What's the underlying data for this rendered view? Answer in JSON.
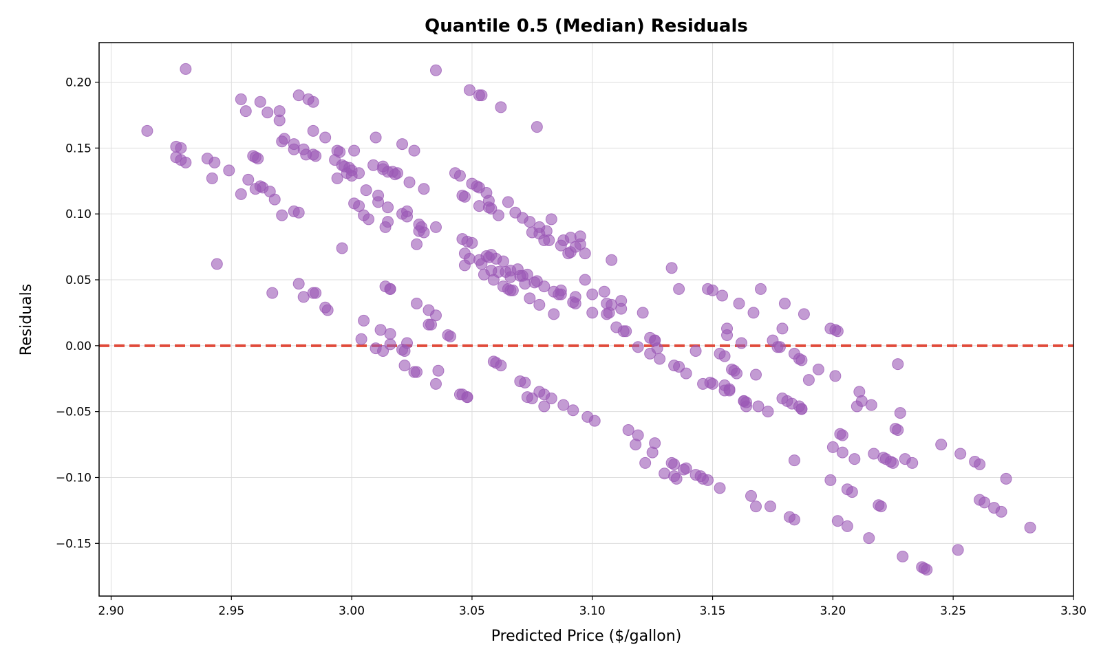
{
  "chart_data": {
    "type": "scatter",
    "title": "Quantile 0.5 (Median) Residuals",
    "xlabel": "Predicted Price ($/gallon)",
    "ylabel": "Residuals",
    "xlim": [
      2.895,
      3.3
    ],
    "ylim": [
      -0.19,
      0.23
    ],
    "x_ticks": [
      "2.90",
      "2.95",
      "3.00",
      "3.05",
      "3.10",
      "3.15",
      "3.20",
      "3.25",
      "3.30"
    ],
    "y_ticks": [
      "−0.15",
      "−0.10",
      "−0.05",
      "0.00",
      "0.05",
      "0.10",
      "0.15",
      "0.20"
    ],
    "grid": true,
    "reference_line": {
      "y": 0.0,
      "style": "dashed",
      "color": "#e04a3a"
    },
    "marker_color": "#9b59b6",
    "points": [
      [
        2.915,
        0.163
      ],
      [
        2.927,
        0.151
      ],
      [
        2.929,
        0.15
      ],
      [
        2.927,
        0.143
      ],
      [
        2.929,
        0.141
      ],
      [
        2.931,
        0.139
      ],
      [
        2.931,
        0.21
      ],
      [
        2.94,
        0.142
      ],
      [
        2.943,
        0.139
      ],
      [
        2.942,
        0.127
      ],
      [
        2.949,
        0.133
      ],
      [
        2.944,
        0.062
      ],
      [
        2.954,
        0.187
      ],
      [
        2.956,
        0.178
      ],
      [
        2.954,
        0.115
      ],
      [
        2.957,
        0.126
      ],
      [
        2.959,
        0.144
      ],
      [
        2.96,
        0.143
      ],
      [
        2.961,
        0.142
      ],
      [
        2.96,
        0.119
      ],
      [
        2.962,
        0.121
      ],
      [
        2.963,
        0.12
      ],
      [
        2.962,
        0.185
      ],
      [
        2.965,
        0.177
      ],
      [
        2.966,
        0.117
      ],
      [
        2.968,
        0.111
      ],
      [
        2.97,
        0.178
      ],
      [
        2.97,
        0.171
      ],
      [
        2.971,
        0.155
      ],
      [
        2.972,
        0.157
      ],
      [
        2.971,
        0.099
      ],
      [
        2.967,
        0.04
      ],
      [
        2.976,
        0.153
      ],
      [
        2.976,
        0.149
      ],
      [
        2.978,
        0.19
      ],
      [
        2.976,
        0.102
      ],
      [
        2.978,
        0.101
      ],
      [
        2.978,
        0.047
      ],
      [
        2.98,
        0.037
      ],
      [
        2.98,
        0.149
      ],
      [
        2.981,
        0.145
      ],
      [
        2.982,
        0.187
      ],
      [
        2.984,
        0.185
      ],
      [
        2.984,
        0.145
      ],
      [
        2.985,
        0.144
      ],
      [
        2.984,
        0.163
      ],
      [
        2.984,
        0.04
      ],
      [
        2.985,
        0.04
      ],
      [
        2.989,
        0.158
      ],
      [
        2.989,
        0.029
      ],
      [
        2.99,
        0.027
      ],
      [
        2.993,
        0.141
      ],
      [
        2.994,
        0.148
      ],
      [
        2.995,
        0.147
      ],
      [
        2.994,
        0.127
      ],
      [
        2.996,
        0.074
      ],
      [
        2.996,
        0.137
      ],
      [
        2.997,
        0.136
      ],
      [
        2.998,
        0.131
      ],
      [
        2.999,
        0.135
      ],
      [
        3.0,
        0.133
      ],
      [
        3.0,
        0.129
      ],
      [
        3.001,
        0.148
      ],
      [
        3.001,
        0.108
      ],
      [
        3.003,
        0.106
      ],
      [
        3.003,
        0.131
      ],
      [
        3.004,
        0.005
      ],
      [
        3.005,
        0.019
      ],
      [
        3.005,
        0.099
      ],
      [
        3.006,
        0.118
      ],
      [
        3.007,
        0.096
      ],
      [
        3.009,
        0.137
      ],
      [
        3.01,
        0.158
      ],
      [
        3.01,
        -0.002
      ],
      [
        3.011,
        0.114
      ],
      [
        3.011,
        0.109
      ],
      [
        3.012,
        0.012
      ],
      [
        3.013,
        -0.004
      ],
      [
        3.013,
        0.136
      ],
      [
        3.013,
        0.134
      ],
      [
        3.014,
        0.045
      ],
      [
        3.014,
        0.09
      ],
      [
        3.015,
        0.132
      ],
      [
        3.015,
        0.094
      ],
      [
        3.015,
        0.105
      ],
      [
        3.016,
        0.043
      ],
      [
        3.016,
        0.043
      ],
      [
        3.016,
        0.001
      ],
      [
        3.016,
        0.009
      ],
      [
        3.017,
        0.132
      ],
      [
        3.018,
        0.13
      ],
      [
        3.019,
        0.131
      ],
      [
        3.021,
        0.153
      ],
      [
        3.021,
        0.1
      ],
      [
        3.021,
        -0.003
      ],
      [
        3.022,
        -0.004
      ],
      [
        3.022,
        -0.015
      ],
      [
        3.023,
        0.098
      ],
      [
        3.023,
        0.102
      ],
      [
        3.023,
        0.002
      ],
      [
        3.024,
        0.124
      ],
      [
        3.026,
        0.148
      ],
      [
        3.026,
        -0.02
      ],
      [
        3.027,
        -0.02
      ],
      [
        3.027,
        0.077
      ],
      [
        3.027,
        0.032
      ],
      [
        3.028,
        0.092
      ],
      [
        3.028,
        0.087
      ],
      [
        3.029,
        0.09
      ],
      [
        3.03,
        0.119
      ],
      [
        3.03,
        0.086
      ],
      [
        3.032,
        0.016
      ],
      [
        3.032,
        0.027
      ],
      [
        3.033,
        0.016
      ],
      [
        3.035,
        0.09
      ],
      [
        3.035,
        0.023
      ],
      [
        3.035,
        -0.029
      ],
      [
        3.036,
        -0.019
      ],
      [
        3.035,
        0.209
      ],
      [
        3.04,
        0.008
      ],
      [
        3.041,
        0.007
      ],
      [
        3.043,
        0.131
      ],
      [
        3.045,
        0.129
      ],
      [
        3.045,
        -0.037
      ],
      [
        3.046,
        -0.037
      ],
      [
        3.046,
        0.114
      ],
      [
        3.046,
        0.081
      ],
      [
        3.047,
        0.061
      ],
      [
        3.047,
        0.113
      ],
      [
        3.047,
        0.07
      ],
      [
        3.048,
        0.079
      ],
      [
        3.048,
        -0.039
      ],
      [
        3.048,
        -0.039
      ],
      [
        3.049,
        0.066
      ],
      [
        3.049,
        0.194
      ],
      [
        3.05,
        0.123
      ],
      [
        3.05,
        0.078
      ],
      [
        3.052,
        0.121
      ],
      [
        3.053,
        0.12
      ],
      [
        3.053,
        0.065
      ],
      [
        3.053,
        0.19
      ],
      [
        3.054,
        0.19
      ],
      [
        3.053,
        0.106
      ],
      [
        3.054,
        0.062
      ],
      [
        3.055,
        0.054
      ],
      [
        3.056,
        0.068
      ],
      [
        3.056,
        0.116
      ],
      [
        3.057,
        0.067
      ],
      [
        3.057,
        0.11
      ],
      [
        3.057,
        0.105
      ],
      [
        3.058,
        0.104
      ],
      [
        3.058,
        0.069
      ],
      [
        3.058,
        0.057
      ],
      [
        3.059,
        0.05
      ],
      [
        3.059,
        -0.012
      ],
      [
        3.06,
        -0.013
      ],
      [
        3.06,
        0.066
      ],
      [
        3.061,
        0.099
      ],
      [
        3.061,
        0.056
      ],
      [
        3.062,
        0.181
      ],
      [
        3.062,
        -0.015
      ],
      [
        3.063,
        0.064
      ],
      [
        3.063,
        0.045
      ],
      [
        3.064,
        0.056
      ],
      [
        3.065,
        0.109
      ],
      [
        3.065,
        0.043
      ],
      [
        3.066,
        0.052
      ],
      [
        3.066,
        0.057
      ],
      [
        3.066,
        0.042
      ],
      [
        3.067,
        0.042
      ],
      [
        3.068,
        0.101
      ],
      [
        3.069,
        0.058
      ],
      [
        3.07,
        0.053
      ],
      [
        3.07,
        -0.027
      ],
      [
        3.071,
        0.097
      ],
      [
        3.071,
        0.053
      ],
      [
        3.072,
        -0.028
      ],
      [
        3.072,
        0.047
      ],
      [
        3.073,
        0.054
      ],
      [
        3.073,
        -0.039
      ],
      [
        3.074,
        0.094
      ],
      [
        3.074,
        0.036
      ],
      [
        3.075,
        0.086
      ],
      [
        3.075,
        -0.04
      ],
      [
        3.076,
        0.048
      ],
      [
        3.077,
        0.049
      ],
      [
        3.077,
        0.166
      ],
      [
        3.078,
        0.085
      ],
      [
        3.078,
        0.09
      ],
      [
        3.078,
        0.031
      ],
      [
        3.078,
        -0.035
      ],
      [
        3.08,
        0.08
      ],
      [
        3.08,
        -0.037
      ],
      [
        3.08,
        -0.046
      ],
      [
        3.08,
        0.045
      ],
      [
        3.081,
        0.087
      ],
      [
        3.082,
        0.08
      ],
      [
        3.083,
        0.096
      ],
      [
        3.083,
        -0.04
      ],
      [
        3.084,
        0.024
      ],
      [
        3.084,
        0.041
      ],
      [
        3.086,
        0.039
      ],
      [
        3.087,
        0.039
      ],
      [
        3.087,
        0.076
      ],
      [
        3.087,
        0.042
      ],
      [
        3.088,
        0.08
      ],
      [
        3.088,
        -0.045
      ],
      [
        3.09,
        0.07
      ],
      [
        3.091,
        0.071
      ],
      [
        3.091,
        0.082
      ],
      [
        3.092,
        0.033
      ],
      [
        3.092,
        -0.049
      ],
      [
        3.093,
        0.032
      ],
      [
        3.093,
        0.037
      ],
      [
        3.093,
        0.075
      ],
      [
        3.095,
        0.083
      ],
      [
        3.095,
        0.077
      ],
      [
        3.097,
        0.05
      ],
      [
        3.097,
        0.07
      ],
      [
        3.098,
        -0.054
      ],
      [
        3.1,
        0.025
      ],
      [
        3.1,
        0.039
      ],
      [
        3.101,
        -0.057
      ],
      [
        3.105,
        0.041
      ],
      [
        3.106,
        0.024
      ],
      [
        3.106,
        0.032
      ],
      [
        3.107,
        0.025
      ],
      [
        3.108,
        0.065
      ],
      [
        3.108,
        0.031
      ],
      [
        3.11,
        0.014
      ],
      [
        3.112,
        0.034
      ],
      [
        3.112,
        0.028
      ],
      [
        3.113,
        0.011
      ],
      [
        3.114,
        0.011
      ],
      [
        3.115,
        -0.064
      ],
      [
        3.118,
        -0.075
      ],
      [
        3.119,
        -0.001
      ],
      [
        3.119,
        -0.068
      ],
      [
        3.121,
        0.025
      ],
      [
        3.122,
        -0.089
      ],
      [
        3.124,
        0.006
      ],
      [
        3.124,
        -0.006
      ],
      [
        3.125,
        -0.081
      ],
      [
        3.126,
        0.004
      ],
      [
        3.126,
        0.004
      ],
      [
        3.126,
        -0.074
      ],
      [
        3.127,
        -0.002
      ],
      [
        3.128,
        -0.01
      ],
      [
        3.13,
        -0.097
      ],
      [
        3.133,
        0.059
      ],
      [
        3.133,
        -0.089
      ],
      [
        3.134,
        -0.015
      ],
      [
        3.134,
        -0.099
      ],
      [
        3.134,
        -0.09
      ],
      [
        3.135,
        -0.101
      ],
      [
        3.136,
        -0.016
      ],
      [
        3.136,
        0.043
      ],
      [
        3.138,
        -0.094
      ],
      [
        3.139,
        -0.021
      ],
      [
        3.139,
        -0.093
      ],
      [
        3.143,
        -0.004
      ],
      [
        3.143,
        -0.098
      ],
      [
        3.145,
        -0.099
      ],
      [
        3.146,
        -0.029
      ],
      [
        3.146,
        -0.101
      ],
      [
        3.148,
        -0.102
      ],
      [
        3.148,
        0.043
      ],
      [
        3.149,
        -0.028
      ],
      [
        3.15,
        0.042
      ],
      [
        3.15,
        -0.029
      ],
      [
        3.153,
        -0.006
      ],
      [
        3.153,
        -0.108
      ],
      [
        3.154,
        0.038
      ],
      [
        3.155,
        -0.03
      ],
      [
        3.155,
        -0.034
      ],
      [
        3.155,
        -0.008
      ],
      [
        3.156,
        0.013
      ],
      [
        3.156,
        0.008
      ],
      [
        3.157,
        -0.033
      ],
      [
        3.157,
        -0.034
      ],
      [
        3.158,
        -0.018
      ],
      [
        3.159,
        -0.019
      ],
      [
        3.16,
        -0.021
      ],
      [
        3.161,
        0.032
      ],
      [
        3.162,
        0.002
      ],
      [
        3.163,
        -0.042
      ],
      [
        3.163,
        -0.042
      ],
      [
        3.164,
        -0.046
      ],
      [
        3.164,
        -0.043
      ],
      [
        3.166,
        -0.114
      ],
      [
        3.167,
        0.025
      ],
      [
        3.168,
        -0.022
      ],
      [
        3.168,
        -0.122
      ],
      [
        3.169,
        -0.046
      ],
      [
        3.17,
        0.043
      ],
      [
        3.173,
        -0.05
      ],
      [
        3.174,
        -0.122
      ],
      [
        3.175,
        0.004
      ],
      [
        3.177,
        -0.001
      ],
      [
        3.178,
        -0.001
      ],
      [
        3.179,
        -0.04
      ],
      [
        3.179,
        0.013
      ],
      [
        3.18,
        0.032
      ],
      [
        3.181,
        -0.042
      ],
      [
        3.182,
        -0.13
      ],
      [
        3.183,
        -0.044
      ],
      [
        3.184,
        -0.087
      ],
      [
        3.184,
        -0.132
      ],
      [
        3.184,
        -0.006
      ],
      [
        3.186,
        -0.046
      ],
      [
        3.186,
        -0.01
      ],
      [
        3.187,
        -0.048
      ],
      [
        3.187,
        -0.011
      ],
      [
        3.187,
        -0.048
      ],
      [
        3.188,
        0.024
      ],
      [
        3.19,
        -0.026
      ],
      [
        3.194,
        -0.018
      ],
      [
        3.199,
        0.013
      ],
      [
        3.199,
        -0.102
      ],
      [
        3.2,
        -0.077
      ],
      [
        3.201,
        0.012
      ],
      [
        3.201,
        -0.023
      ],
      [
        3.202,
        0.011
      ],
      [
        3.202,
        -0.133
      ],
      [
        3.203,
        -0.067
      ],
      [
        3.204,
        -0.081
      ],
      [
        3.204,
        -0.068
      ],
      [
        3.206,
        -0.109
      ],
      [
        3.206,
        -0.137
      ],
      [
        3.208,
        -0.111
      ],
      [
        3.209,
        -0.086
      ],
      [
        3.21,
        -0.046
      ],
      [
        3.211,
        -0.035
      ],
      [
        3.212,
        -0.042
      ],
      [
        3.215,
        -0.146
      ],
      [
        3.216,
        -0.045
      ],
      [
        3.217,
        -0.082
      ],
      [
        3.219,
        -0.121
      ],
      [
        3.22,
        -0.122
      ],
      [
        3.221,
        -0.085
      ],
      [
        3.222,
        -0.086
      ],
      [
        3.224,
        -0.088
      ],
      [
        3.225,
        -0.089
      ],
      [
        3.226,
        -0.063
      ],
      [
        3.227,
        -0.064
      ],
      [
        3.227,
        -0.014
      ],
      [
        3.228,
        -0.051
      ],
      [
        3.229,
        -0.16
      ],
      [
        3.23,
        -0.086
      ],
      [
        3.233,
        -0.089
      ],
      [
        3.237,
        -0.168
      ],
      [
        3.238,
        -0.169
      ],
      [
        3.239,
        -0.17
      ],
      [
        3.245,
        -0.075
      ],
      [
        3.252,
        -0.155
      ],
      [
        3.253,
        -0.082
      ],
      [
        3.259,
        -0.088
      ],
      [
        3.261,
        -0.09
      ],
      [
        3.261,
        -0.117
      ],
      [
        3.263,
        -0.119
      ],
      [
        3.267,
        -0.123
      ],
      [
        3.27,
        -0.126
      ],
      [
        3.272,
        -0.101
      ],
      [
        3.282,
        -0.138
      ]
    ]
  }
}
